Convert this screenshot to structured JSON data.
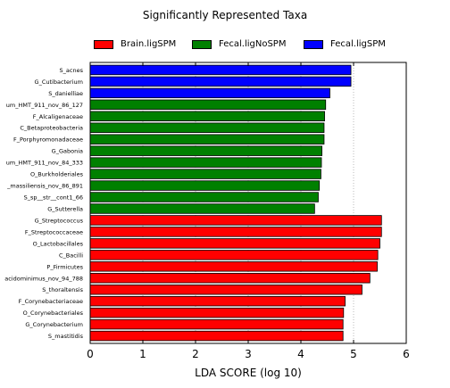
{
  "chart_data": {
    "type": "bar",
    "orientation": "horizontal",
    "title": "Significantly Represented Taxa",
    "xlabel": "LDA SCORE (log 10)",
    "ylabel": "",
    "xlim": [
      0,
      6
    ],
    "xticks": [
      "0",
      "1",
      "2",
      "3",
      "4",
      "5",
      "6"
    ],
    "grid": "vertical dotted",
    "legend_position": "top",
    "legend": [
      {
        "name": "Brain.ligSPM",
        "color": "#ff0000"
      },
      {
        "name": "Fecal.ligNoSPM",
        "color": "#008000"
      },
      {
        "name": "Fecal.ligSPM",
        "color": "#0000ff"
      }
    ],
    "categories": [
      "S_acnes",
      "G_Cutibacterium",
      "S_danielliae",
      "um_HMT_911_nov_86_127",
      "F_Alcaligenaceae",
      "C_Betaproteobacteria",
      "F_Porphyromonadaceae",
      "G_Gabonia",
      "um_HMT_911_nov_84_333",
      "O_Burkholderiales",
      "_massiliensis_nov_86_891",
      "S_sp__str__cont1_66",
      "G_Sutterella",
      "G_Streptococcus",
      "F_Streptococcaceae",
      "O_Lactobacillales",
      "C_Bacilli",
      "P_Firmicutes",
      "acidominimus_nov_94_788",
      "S_thoraltensis",
      "F_Corynebacteriaceae",
      "O_Corynebacteriales",
      "G_Corynebacterium",
      "S_mastitidis"
    ],
    "values": [
      4.95,
      4.95,
      4.55,
      4.47,
      4.45,
      4.44,
      4.44,
      4.4,
      4.39,
      4.38,
      4.35,
      4.33,
      4.26,
      5.53,
      5.53,
      5.5,
      5.46,
      5.45,
      5.31,
      5.16,
      4.84,
      4.81,
      4.8,
      4.8
    ],
    "groups": [
      "Fecal.ligSPM",
      "Fecal.ligSPM",
      "Fecal.ligSPM",
      "Fecal.ligNoSPM",
      "Fecal.ligNoSPM",
      "Fecal.ligNoSPM",
      "Fecal.ligNoSPM",
      "Fecal.ligNoSPM",
      "Fecal.ligNoSPM",
      "Fecal.ligNoSPM",
      "Fecal.ligNoSPM",
      "Fecal.ligNoSPM",
      "Fecal.ligNoSPM",
      "Brain.ligSPM",
      "Brain.ligSPM",
      "Brain.ligSPM",
      "Brain.ligSPM",
      "Brain.ligSPM",
      "Brain.ligSPM",
      "Brain.ligSPM",
      "Brain.ligSPM",
      "Brain.ligSPM",
      "Brain.ligSPM",
      "Brain.ligSPM"
    ]
  }
}
